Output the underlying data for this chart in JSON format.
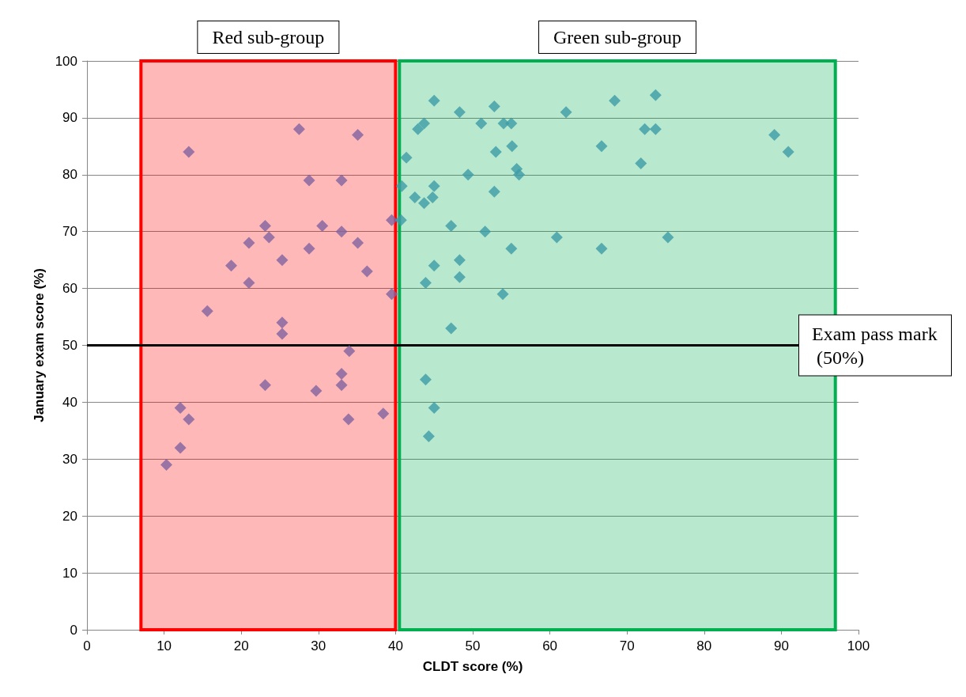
{
  "chart_data": {
    "type": "scatter",
    "xlabel": "CLDT score (%)",
    "ylabel": "January exam score (%)",
    "xlim": [
      0,
      100
    ],
    "xticks": [
      0,
      10,
      20,
      30,
      40,
      50,
      60,
      70,
      80,
      90,
      100
    ],
    "ylim": [
      0,
      100
    ],
    "yticks": [
      0,
      10,
      20,
      30,
      40,
      50,
      60,
      70,
      80,
      90,
      100
    ],
    "grid": "y",
    "marker": "diamond",
    "x": [
      13.2,
      27.5,
      35.1,
      28.8,
      33.0,
      23.1,
      23.6,
      21.0,
      18.7,
      21.0,
      25.3,
      28.8,
      30.5,
      33.0,
      35.1,
      36.3,
      39.5,
      39.5,
      15.6,
      25.3,
      25.3,
      34.0,
      33.0,
      33.0,
      23.1,
      29.7,
      38.4,
      33.9,
      12.1,
      13.2,
      12.1,
      10.3,
      73.7,
      68.4,
      45.0,
      52.8,
      48.3,
      62.1,
      43.7,
      42.9,
      51.1,
      54.0,
      55.0,
      89.1,
      90.9,
      72.3,
      73.7,
      66.7,
      55.1,
      53.0,
      41.4,
      71.8,
      55.7,
      56.0,
      49.4,
      40.8,
      45.0,
      42.5,
      44.8,
      43.7,
      52.8,
      40.7,
      47.2,
      51.6,
      60.9,
      75.3,
      66.7,
      55.0,
      48.3,
      45.0,
      48.3,
      43.9,
      53.9,
      47.2,
      43.9,
      45.0,
      44.3
    ],
    "values": [
      84,
      88,
      87,
      79,
      79,
      71,
      69,
      68,
      64,
      61,
      65,
      67,
      71,
      70,
      68,
      63,
      72,
      59,
      56,
      54,
      52,
      49,
      45,
      43,
      43,
      42,
      38,
      37,
      39,
      37,
      32,
      29,
      94,
      93,
      93,
      92,
      91,
      91,
      89,
      88,
      89,
      89,
      89,
      87,
      84,
      88,
      88,
      85,
      85,
      84,
      83,
      82,
      81,
      80,
      80,
      78,
      78,
      76,
      76,
      75,
      77,
      72,
      71,
      70,
      69,
      69,
      67,
      67,
      65,
      64,
      62,
      61,
      59,
      53,
      44,
      39,
      34
    ],
    "colors": [
      "#7f63a0",
      "#7f63a0",
      "#7f63a0",
      "#7f63a0",
      "#7f63a0",
      "#7f63a0",
      "#7f63a0",
      "#7f63a0",
      "#7f63a0",
      "#7f63a0",
      "#7f63a0",
      "#7f63a0",
      "#7f63a0",
      "#7f63a0",
      "#7f63a0",
      "#7f63a0",
      "#7f63a0",
      "#7f63a0",
      "#7f63a0",
      "#7f63a0",
      "#7f63a0",
      "#7f63a0",
      "#7f63a0",
      "#7f63a0",
      "#7f63a0",
      "#7f63a0",
      "#7f63a0",
      "#7f63a0",
      "#7f63a0",
      "#7f63a0",
      "#7f63a0",
      "#7f63a0",
      "#3d9ba6",
      "#3d9ba6",
      "#3d9ba6",
      "#3d9ba6",
      "#3d9ba6",
      "#3d9ba6",
      "#3d9ba6",
      "#3d9ba6",
      "#3d9ba6",
      "#3d9ba6",
      "#3d9ba6",
      "#3d9ba6",
      "#3d9ba6",
      "#3d9ba6",
      "#3d9ba6",
      "#3d9ba6",
      "#3d9ba6",
      "#3d9ba6",
      "#3d9ba6",
      "#3d9ba6",
      "#3d9ba6",
      "#3d9ba6",
      "#3d9ba6",
      "#3d9ba6",
      "#3d9ba6",
      "#3d9ba6",
      "#3d9ba6",
      "#3d9ba6",
      "#3d9ba6",
      "#3d9ba6",
      "#3d9ba6",
      "#3d9ba6",
      "#3d9ba6",
      "#3d9ba6",
      "#3d9ba6",
      "#3d9ba6",
      "#3d9ba6",
      "#3d9ba6",
      "#3d9ba6",
      "#3d9ba6",
      "#3d9ba6",
      "#3d9ba6",
      "#3d9ba6",
      "#3d9ba6",
      "#3d9ba6"
    ],
    "bands": [
      {
        "axis": "x",
        "from": 7,
        "to": 40,
        "label": "Red sub-group",
        "color": "#ff0000"
      },
      {
        "axis": "x",
        "from": 40.5,
        "to": 97,
        "label": "Green sub-group",
        "color": "#00b050"
      }
    ],
    "ref_lines": [
      {
        "axis": "y",
        "value": 50,
        "label": "Exam pass mark (50%)",
        "color": "#000000"
      }
    ]
  }
}
